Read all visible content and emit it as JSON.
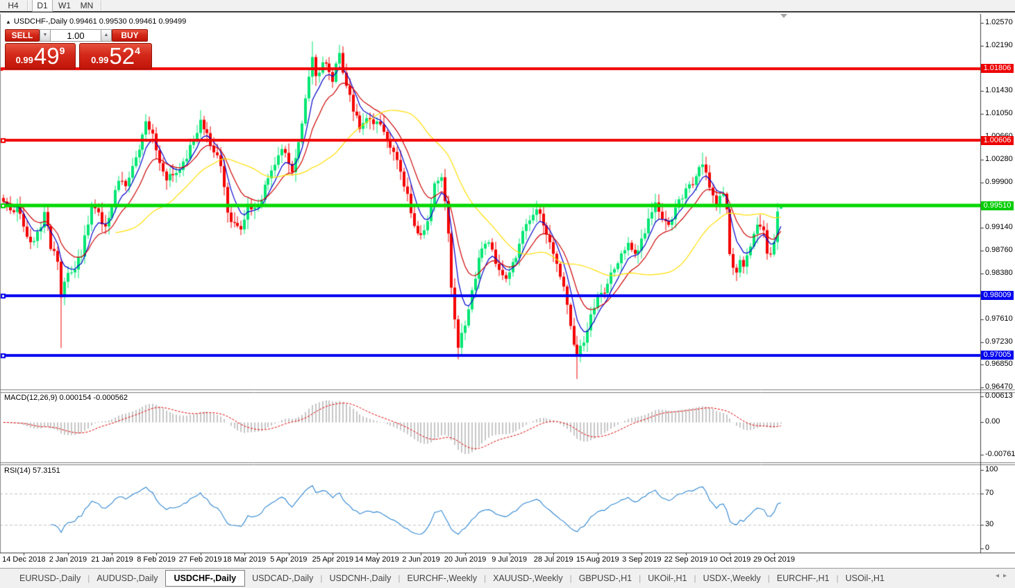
{
  "toolbar": {
    "timeframes": [
      {
        "label": "H4",
        "active": false
      },
      {
        "label": "D1",
        "active": true
      },
      {
        "label": "W1",
        "active": false
      },
      {
        "label": "MN",
        "active": false
      }
    ]
  },
  "header": {
    "marker": "▲",
    "text": "USDCHF-,Daily  0.99461 0.99530 0.99461 0.99499"
  },
  "one_click": {
    "sell_label": "SELL",
    "buy_label": "BUY",
    "volume": "1.00",
    "spinner_down": "▼",
    "spinner_up": "▲",
    "sell_price": {
      "prefix": "0.99",
      "big": "49",
      "sup": "9"
    },
    "buy_price": {
      "prefix": "0.99",
      "big": "52",
      "sup": "4"
    }
  },
  "chart_data": {
    "type": "candlestick",
    "symbol": "USDCHF-",
    "timeframe": "Daily",
    "bars": 230,
    "last_ohlc": {
      "open": 0.99461,
      "high": 0.9953,
      "low": 0.99461,
      "close": 0.99499
    },
    "price_axis": {
      "min": 0.9647,
      "max": 1.0257,
      "ticks": [
        {
          "text": "1.02570",
          "value": 1.0257
        },
        {
          "text": "1.02190",
          "value": 1.0219
        },
        {
          "text": "1.01430",
          "value": 1.0143
        },
        {
          "text": "1.01050",
          "value": 1.0105
        },
        {
          "text": "1.00660",
          "value": 1.0066
        },
        {
          "text": "1.00280",
          "value": 1.0028
        },
        {
          "text": "0.99900",
          "value": 0.999
        },
        {
          "text": "0.99140",
          "value": 0.9914
        },
        {
          "text": "0.98760",
          "value": 0.9876
        },
        {
          "text": "0.98380",
          "value": 0.9838
        },
        {
          "text": "0.97610",
          "value": 0.9761
        },
        {
          "text": "0.97230",
          "value": 0.9723
        },
        {
          "text": "0.96850",
          "value": 0.9685
        },
        {
          "text": "0.96470",
          "value": 0.9647
        }
      ],
      "badges": [
        {
          "text": "1.01806",
          "value": 1.01806,
          "color": "#ee0000"
        },
        {
          "text": "1.00606",
          "value": 1.00606,
          "color": "#ee0000"
        },
        {
          "text": "0.99510",
          "value": 0.9951,
          "color": "#00cc00"
        },
        {
          "text": "0.98009",
          "value": 0.98009,
          "color": "#0000ee"
        },
        {
          "text": "0.97005",
          "value": 0.97005,
          "color": "#0000ee"
        }
      ]
    },
    "levels": [
      {
        "value": 1.01806,
        "color": "#f00000",
        "width": 4
      },
      {
        "value": 1.00606,
        "color": "#f00000",
        "width": 4
      },
      {
        "value": 0.9951,
        "color": "#00d800",
        "width": 5
      },
      {
        "value": 0.98009,
        "color": "#0000f0",
        "width": 4
      },
      {
        "value": 0.97005,
        "color": "#0000f0",
        "width": 4
      }
    ],
    "candle_colors": {
      "up": "#00e673",
      "down": "#f40000"
    },
    "moving_averages": [
      {
        "method": "ema",
        "period": 6,
        "color": "#0000cc"
      },
      {
        "method": "ema",
        "period": 13,
        "color": "#cc0000"
      },
      {
        "method": "sma",
        "period": 34,
        "color": "#ffdf00"
      }
    ],
    "close_anchors": [
      [
        0,
        0.9958
      ],
      [
        2,
        0.9942
      ],
      [
        4,
        0.995
      ],
      [
        6,
        0.9916
      ],
      [
        8,
        0.989
      ],
      [
        10,
        0.9905
      ],
      [
        12,
        0.9938
      ],
      [
        14,
        0.988
      ],
      [
        16,
        0.9858
      ],
      [
        17,
        0.9795
      ],
      [
        18,
        0.9822
      ],
      [
        20,
        0.984
      ],
      [
        23,
        0.9868
      ],
      [
        26,
        0.9952
      ],
      [
        28,
        0.994
      ],
      [
        30,
        0.9915
      ],
      [
        32,
        0.995
      ],
      [
        34,
        0.9992
      ],
      [
        36,
        0.9985
      ],
      [
        38,
        1.0018
      ],
      [
        40,
        1.0045
      ],
      [
        42,
        1.0092
      ],
      [
        44,
        1.007
      ],
      [
        46,
        1.0022
      ],
      [
        48,
        0.9992
      ],
      [
        50,
        1.0
      ],
      [
        52,
        1.0012
      ],
      [
        54,
        1.003
      ],
      [
        56,
        1.006
      ],
      [
        58,
        1.0094
      ],
      [
        60,
        1.007
      ],
      [
        62,
        1.0042
      ],
      [
        64,
        1.0018
      ],
      [
        66,
        0.9942
      ],
      [
        68,
        0.992
      ],
      [
        70,
        0.9912
      ],
      [
        72,
        0.9955
      ],
      [
        74,
        0.9948
      ],
      [
        76,
        0.9962
      ],
      [
        78,
        0.9995
      ],
      [
        80,
        1.0022
      ],
      [
        82,
        1.0045
      ],
      [
        84,
        1.002
      ],
      [
        85,
        1.0005
      ],
      [
        87,
        1.0058
      ],
      [
        89,
        1.013
      ],
      [
        91,
        1.02
      ],
      [
        92,
        1.017
      ],
      [
        94,
        1.019
      ],
      [
        96,
        1.0172
      ],
      [
        97,
        1.0158
      ],
      [
        99,
        1.0208
      ],
      [
        101,
        1.015
      ],
      [
        103,
        1.0108
      ],
      [
        105,
        1.0082
      ],
      [
        107,
        1.0095
      ],
      [
        109,
        1.0088
      ],
      [
        111,
        1.0085
      ],
      [
        113,
        1.006
      ],
      [
        115,
        1.004
      ],
      [
        117,
        1.001
      ],
      [
        119,
        0.9972
      ],
      [
        121,
        0.9915
      ],
      [
        123,
        0.99
      ],
      [
        125,
        0.9925
      ],
      [
        127,
        0.9988
      ],
      [
        129,
        0.9998
      ],
      [
        131,
        0.9905
      ],
      [
        132,
        0.9815
      ],
      [
        133,
        0.976
      ],
      [
        134,
        0.9715
      ],
      [
        135,
        0.9738
      ],
      [
        136,
        0.9748
      ],
      [
        138,
        0.981
      ],
      [
        140,
        0.9862
      ],
      [
        142,
        0.989
      ],
      [
        144,
        0.9878
      ],
      [
        146,
        0.9845
      ],
      [
        148,
        0.983
      ],
      [
        150,
        0.9855
      ],
      [
        152,
        0.9885
      ],
      [
        154,
        0.992
      ],
      [
        156,
        0.9938
      ],
      [
        158,
        0.994
      ],
      [
        160,
        0.9905
      ],
      [
        162,
        0.987
      ],
      [
        164,
        0.9835
      ],
      [
        166,
        0.9788
      ],
      [
        168,
        0.972
      ],
      [
        169,
        0.9698
      ],
      [
        170,
        0.9715
      ],
      [
        172,
        0.9742
      ],
      [
        174,
        0.9782
      ],
      [
        176,
        0.9805
      ],
      [
        178,
        0.9818
      ],
      [
        180,
        0.9845
      ],
      [
        182,
        0.987
      ],
      [
        184,
        0.9888
      ],
      [
        186,
        0.9868
      ],
      [
        188,
        0.9895
      ],
      [
        190,
        0.993
      ],
      [
        192,
        0.9958
      ],
      [
        194,
        0.9928
      ],
      [
        196,
        0.992
      ],
      [
        198,
        0.9948
      ],
      [
        200,
        0.9962
      ],
      [
        202,
        0.9985
      ],
      [
        204,
        1.0
      ],
      [
        206,
        1.0022
      ],
      [
        208,
        0.998
      ],
      [
        210,
        0.9952
      ],
      [
        211,
        0.9965
      ],
      [
        212,
        0.997
      ],
      [
        213,
        0.9945
      ],
      [
        214,
        0.9868
      ],
      [
        215,
        0.9845
      ],
      [
        216,
        0.984
      ],
      [
        217,
        0.9862
      ],
      [
        218,
        0.985
      ],
      [
        219,
        0.9868
      ],
      [
        220,
        0.9882
      ],
      [
        221,
        0.9905
      ],
      [
        222,
        0.9922
      ],
      [
        223,
        0.9915
      ],
      [
        224,
        0.9908
      ],
      [
        225,
        0.987
      ],
      [
        226,
        0.9868
      ],
      [
        227,
        0.9892
      ],
      [
        228,
        0.9944
      ],
      [
        229,
        0.99499
      ]
    ],
    "wick_spikes": [
      [
        17,
        "L",
        0.9713
      ],
      [
        91,
        "H",
        1.0226
      ],
      [
        99,
        "H",
        1.0216
      ],
      [
        134,
        "L",
        0.9694
      ],
      [
        169,
        "L",
        0.9661
      ],
      [
        206,
        "H",
        1.004
      ]
    ],
    "x_axis": {
      "labels": [
        {
          "text": "14 Dec 2018",
          "bar": 6
        },
        {
          "text": "2 Jan 2019",
          "bar": 19
        },
        {
          "text": "21 Jan 2019",
          "bar": 32
        },
        {
          "text": "8 Feb 2019",
          "bar": 45
        },
        {
          "text": "27 Feb 2019",
          "bar": 58
        },
        {
          "text": "18 Mar 2019",
          "bar": 71
        },
        {
          "text": "5 Apr 2019",
          "bar": 84
        },
        {
          "text": "25 Apr 2019",
          "bar": 97
        },
        {
          "text": "14 May 2019",
          "bar": 110
        },
        {
          "text": "2 Jun 2019",
          "bar": 123
        },
        {
          "text": "20 Jun 2019",
          "bar": 136
        },
        {
          "text": "9 Jul 2019",
          "bar": 149
        },
        {
          "text": "28 Jul 2019",
          "bar": 162
        },
        {
          "text": "15 Aug 2019",
          "bar": 175
        },
        {
          "text": "3 Sep 2019",
          "bar": 188
        },
        {
          "text": "22 Sep 2019",
          "bar": 201
        },
        {
          "text": "10 Oct 2019",
          "bar": 214
        },
        {
          "text": "29 Oct 2019",
          "bar": 227
        }
      ]
    },
    "macd": {
      "label": "MACD(12,26,9) 0.000154 -0.000562",
      "params": [
        12,
        26,
        9
      ],
      "scale_ticks": [
        {
          "text": "0.00613",
          "value": 0.00613
        },
        {
          "text": "0.00",
          "value": 0
        },
        {
          "text": "-0.007612",
          "value": -0.007612
        }
      ],
      "histogram_color": "#b4b4b4",
      "signal_color": "#e00000"
    },
    "rsi": {
      "label": "RSI(14) 57.3151",
      "period": 14,
      "value": 57.3151,
      "scale_ticks": [
        {
          "text": "100",
          "value": 100
        },
        {
          "text": "70",
          "value": 70
        },
        {
          "text": "30",
          "value": 30
        },
        {
          "text": "0",
          "value": 0
        }
      ],
      "line_color": "#2e86d0",
      "level_lines": [
        70,
        30
      ],
      "level_line_color": "#c4c4c4"
    }
  },
  "tabs": {
    "items": [
      "EURUSD-,Daily",
      "AUDUSD-,Daily",
      "USDCHF-,Daily",
      "USDCAD-,Daily",
      "USDCNH-,Daily",
      "EURCHF-,Weekly",
      "XAUUSD-,Weekly",
      "GBPUSD-,H1",
      "UKOil-,H1",
      "USDX-,Weekly",
      "EURCHF-,H1",
      "USOil-,H1"
    ],
    "active_index": 2,
    "separator": "|",
    "scroll_left_icon": "◂",
    "scroll_right_icon": "▸"
  }
}
